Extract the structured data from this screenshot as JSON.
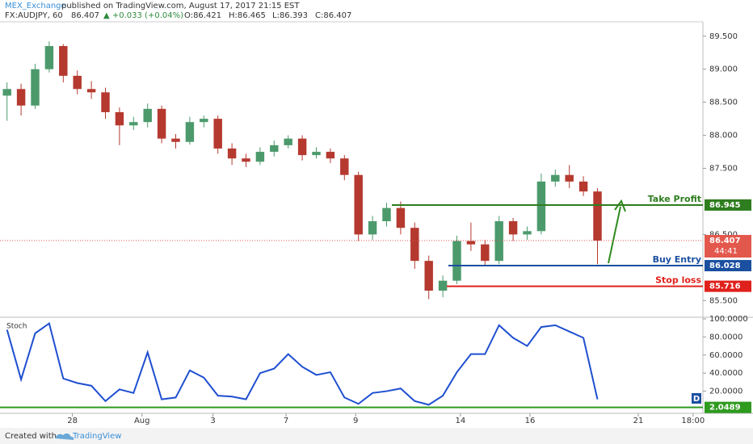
{
  "header": {
    "author": "MEX_Exchange",
    "published": "published on TradingView.com, August 17, 2017 21:15 EST",
    "symbol": "FX:AUDJPY, 60",
    "last": "86.407",
    "change": "▲ +0.033 (+0.04%)",
    "open": "O:86.421",
    "high": "H:86.465",
    "low": "L:86.393",
    "close": "C:86.407"
  },
  "footer": {
    "created": "Created with",
    "brand": "TradingView"
  },
  "chart_data": [
    {
      "type": "candlestick",
      "x": [
        1,
        3,
        5,
        7,
        9,
        11,
        13,
        15,
        17,
        19,
        21,
        23,
        25,
        27,
        29,
        31,
        33,
        35,
        37,
        39,
        41,
        43,
        45,
        47,
        49,
        51,
        53,
        55,
        57,
        59,
        61,
        63,
        65,
        67,
        69,
        71,
        73,
        75,
        77,
        79,
        81,
        83,
        85
      ],
      "open": [
        88.6,
        88.7,
        88.45,
        89.0,
        89.35,
        88.9,
        88.7,
        88.65,
        88.35,
        88.15,
        88.2,
        88.4,
        87.95,
        87.9,
        88.2,
        88.25,
        87.8,
        87.65,
        87.6,
        87.75,
        87.85,
        87.95,
        87.7,
        87.75,
        87.65,
        87.4,
        86.5,
        86.7,
        86.9,
        86.6,
        86.1,
        85.65,
        85.8,
        86.4,
        86.35,
        86.1,
        86.7,
        86.5,
        86.55,
        87.3,
        87.4,
        87.3,
        87.15
      ],
      "high": [
        88.8,
        88.78,
        89.08,
        89.42,
        89.38,
        88.98,
        88.82,
        88.72,
        88.42,
        88.28,
        88.48,
        88.45,
        88.02,
        88.28,
        88.3,
        88.3,
        87.88,
        87.72,
        87.82,
        87.92,
        88.0,
        88.0,
        87.82,
        87.8,
        87.7,
        87.45,
        86.78,
        86.98,
        87.0,
        86.68,
        86.18,
        85.88,
        86.48,
        86.68,
        86.42,
        86.78,
        86.75,
        86.62,
        87.42,
        87.48,
        87.55,
        87.38,
        87.2
      ],
      "low": [
        88.22,
        88.3,
        88.4,
        88.95,
        88.8,
        88.62,
        88.55,
        88.25,
        87.85,
        88.08,
        88.12,
        87.88,
        87.8,
        87.86,
        88.12,
        87.72,
        87.55,
        87.52,
        87.55,
        87.68,
        87.8,
        87.62,
        87.65,
        87.58,
        87.32,
        86.4,
        86.42,
        86.62,
        86.5,
        85.98,
        85.52,
        85.55,
        85.75,
        86.25,
        86.02,
        86.05,
        86.4,
        86.42,
        86.5,
        87.22,
        87.2,
        87.08,
        86.05
      ],
      "close": [
        88.7,
        88.45,
        89.0,
        89.35,
        88.9,
        88.7,
        88.65,
        88.35,
        88.15,
        88.2,
        88.4,
        87.95,
        87.9,
        88.2,
        88.25,
        87.8,
        87.65,
        87.6,
        87.75,
        87.85,
        87.95,
        87.7,
        87.75,
        87.65,
        87.4,
        86.5,
        86.7,
        86.9,
        86.6,
        86.1,
        85.65,
        85.8,
        86.4,
        86.35,
        86.1,
        86.7,
        86.5,
        86.55,
        87.3,
        87.4,
        87.3,
        87.15,
        86.407
      ],
      "up_color": "#4c9a6c",
      "down_color": "#b5392f",
      "xlim": [
        0,
        100
      ],
      "xticks": [
        {
          "value": 10.3,
          "label": "28"
        },
        {
          "value": 20.2,
          "label": "Aug"
        },
        {
          "value": 30.3,
          "label": "3"
        },
        {
          "value": 40.7,
          "label": "7"
        },
        {
          "value": 50.6,
          "label": "9"
        },
        {
          "value": 65.5,
          "label": "14"
        },
        {
          "value": 75.4,
          "label": "16"
        },
        {
          "value": 90.8,
          "label": "21"
        },
        {
          "value": 98.6,
          "label": "18:00"
        }
      ],
      "ylim": [
        85.247,
        89.717
      ],
      "yticks": [
        {
          "value": 89.5,
          "label": "89.500"
        },
        {
          "value": 89,
          "label": "89.000"
        },
        {
          "value": 88.5,
          "label": "88.500"
        },
        {
          "value": 88,
          "label": "88.000"
        },
        {
          "value": 87.5,
          "label": "87.500"
        },
        {
          "value": 86.5,
          "label": "86.500"
        },
        {
          "value": 85.5,
          "label": "85.500"
        }
      ],
      "last_price": 86.407,
      "countdown": "44:41",
      "levels": [
        {
          "name": "Take Profit",
          "value": 86.945,
          "color": "#2e7d1e"
        },
        {
          "name": "Buy Entry",
          "value": 86.028,
          "color": "#1b4fa0"
        },
        {
          "name": "Stop loss",
          "value": 85.716,
          "color": "#e0201b"
        }
      ]
    },
    {
      "type": "line",
      "name": "Stoch",
      "color": "#1f4fd0",
      "x": [
        1,
        3,
        5,
        7,
        9,
        11,
        13,
        15,
        17,
        19,
        21,
        23,
        25,
        27,
        29,
        31,
        33,
        35,
        37,
        39,
        41,
        43,
        45,
        47,
        49,
        51,
        53,
        55,
        57,
        59,
        61,
        63,
        65,
        67,
        69,
        71,
        73,
        75,
        77,
        79,
        81,
        83,
        85
      ],
      "values": [
        88,
        33,
        84,
        95,
        34,
        29,
        26,
        9,
        22,
        18,
        63,
        11,
        13,
        43,
        35,
        15,
        14,
        11,
        40,
        45,
        61,
        47,
        38,
        41,
        13,
        6,
        18,
        20,
        23,
        9,
        5,
        15,
        41,
        61,
        61,
        93,
        79,
        70,
        91,
        93,
        86,
        79,
        11
      ],
      "xlim": [
        0,
        100
      ],
      "ylim": [
        -4.5,
        101.8
      ],
      "yticks": [
        {
          "value": 100,
          "label": "100.0000"
        },
        {
          "value": 80,
          "label": "80.0000"
        },
        {
          "value": 60,
          "label": "60.0000"
        },
        {
          "value": 40,
          "label": "40.0000"
        },
        {
          "value": 20,
          "label": "20.0000"
        }
      ],
      "level": 2.0489,
      "level_color": "#2e9a1e",
      "badge": "D"
    }
  ]
}
